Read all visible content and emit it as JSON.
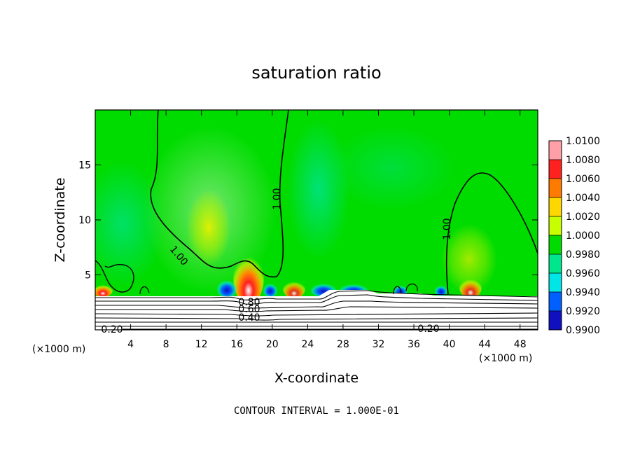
{
  "chart_data": {
    "type": "contour",
    "title": "saturation ratio",
    "xlabel": "X-coordinate",
    "ylabel": "Z-coordinate",
    "x_units": "(×1000 m)",
    "y_units": "(×1000 m)",
    "xlim": [
      0,
      50
    ],
    "ylim": [
      0,
      20
    ],
    "x_ticks": [
      "4",
      "8",
      "12",
      "16",
      "20",
      "24",
      "28",
      "32",
      "36",
      "40",
      "44",
      "48"
    ],
    "x_tick_values": [
      4,
      8,
      12,
      16,
      20,
      24,
      28,
      32,
      36,
      40,
      44,
      48
    ],
    "y_ticks": [
      "5",
      "10",
      "15"
    ],
    "y_tick_values": [
      5,
      10,
      15
    ],
    "colorbar": {
      "labels": [
        "1.0100",
        "1.0080",
        "1.0060",
        "1.0040",
        "1.0020",
        "1.0000",
        "0.9980",
        "0.9960",
        "0.9940",
        "0.9920",
        "0.9900"
      ],
      "colors": [
        "#ff9fa8",
        "#ff2020",
        "#ff7a00",
        "#ffd700",
        "#c8ff00",
        "#00dc00",
        "#00e68c",
        "#00e6e6",
        "#0060ff",
        "#1010c0",
        "#7000a0"
      ]
    },
    "contour_labels": [
      "1.00",
      "1.00",
      "1.00",
      "0.80",
      "0.60",
      "0.40",
      "0.20",
      "0.20"
    ],
    "footer": "CONTOUR INTERVAL = 1.000E-01"
  }
}
